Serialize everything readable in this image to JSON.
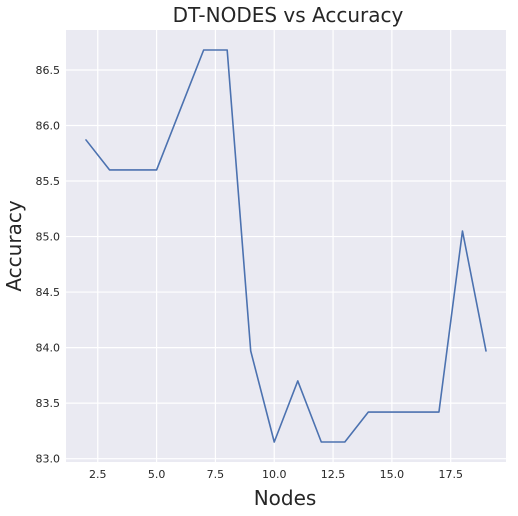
{
  "chart_data": {
    "type": "line",
    "title": "DT-NODES vs Accuracy",
    "xlabel": "Nodes",
    "ylabel": "Accuracy",
    "x": [
      2,
      3,
      4,
      5,
      6,
      7,
      8,
      9,
      10,
      11,
      12,
      13,
      14,
      15,
      16,
      17,
      18,
      19
    ],
    "series": [
      {
        "values": [
          85.87,
          85.6,
          85.6,
          85.6,
          86.14,
          86.68,
          86.68,
          83.97,
          83.15,
          83.7,
          83.15,
          83.15,
          83.42,
          83.42,
          83.42,
          83.42,
          85.05,
          83.97
        ],
        "color": "#4c72b0"
      }
    ],
    "xlim": [
      1.15,
      19.85
    ],
    "ylim": [
      82.97,
      86.86
    ],
    "xticks": [
      2.5,
      5.0,
      7.5,
      10.0,
      12.5,
      15.0,
      17.5
    ],
    "xtick_labels": [
      "2.5",
      "5.0",
      "7.5",
      "10.0",
      "12.5",
      "15.0",
      "17.5"
    ],
    "yticks": [
      83.0,
      83.5,
      84.0,
      84.5,
      85.0,
      85.5,
      86.0,
      86.5
    ],
    "ytick_labels": [
      "83.0",
      "83.5",
      "84.0",
      "84.5",
      "85.0",
      "85.5",
      "86.0",
      "86.5"
    ],
    "grid": true,
    "background": "#eaeaf2"
  }
}
